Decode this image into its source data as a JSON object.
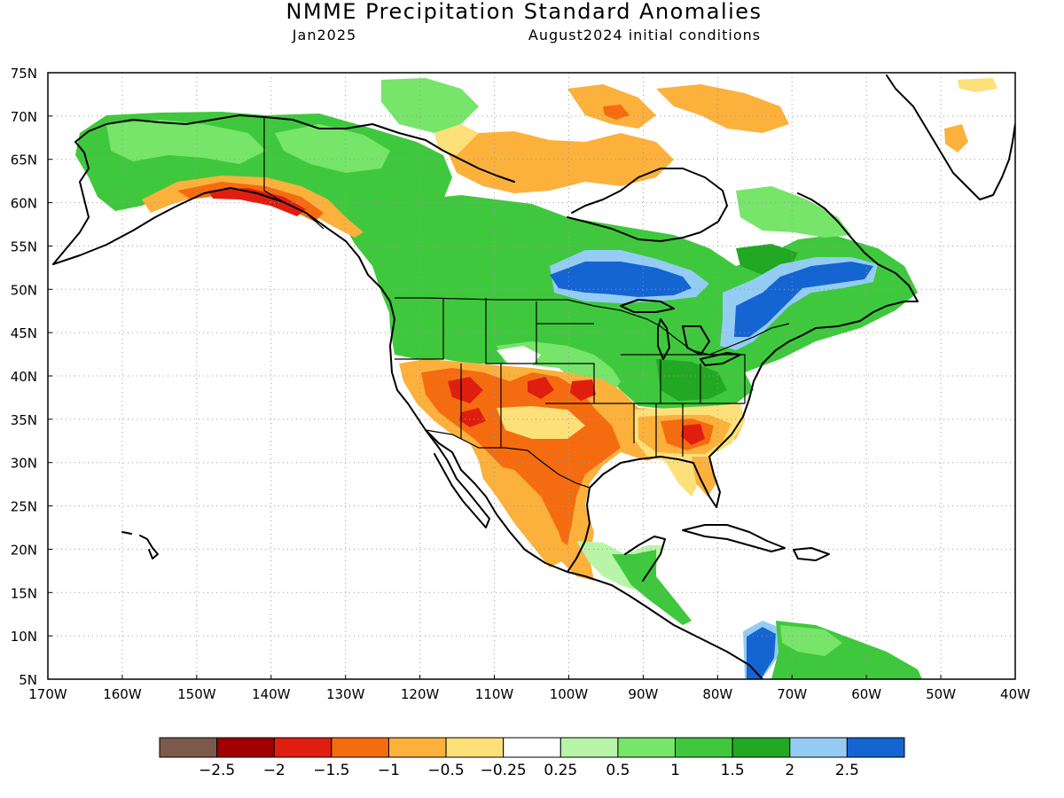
{
  "title": "NMME Precipitation Standard Anomalies",
  "subtitle_left": "Jan2025",
  "subtitle_right": "August2024 initial conditions",
  "map": {
    "lon_range": [
      -170,
      -40
    ],
    "lat_range": [
      5,
      75
    ],
    "lon_ticks": [
      -170,
      -160,
      -150,
      -140,
      -130,
      -120,
      -110,
      -100,
      -90,
      -80,
      -70,
      -60,
      -50,
      -40
    ],
    "lon_tick_labels": [
      "170W",
      "160W",
      "150W",
      "140W",
      "130W",
      "120W",
      "110W",
      "100W",
      "90W",
      "80W",
      "70W",
      "60W",
      "50W",
      "40W"
    ],
    "lat_ticks": [
      5,
      10,
      15,
      20,
      25,
      30,
      35,
      40,
      45,
      50,
      55,
      60,
      65,
      70,
      75
    ],
    "lat_tick_labels": [
      "5N",
      "10N",
      "15N",
      "20N",
      "25N",
      "30N",
      "35N",
      "40N",
      "45N",
      "50N",
      "55N",
      "60N",
      "65N",
      "70N",
      "75N"
    ],
    "grid": "dotted"
  },
  "legend": {
    "colors": [
      "#7b5a4c",
      "#a00000",
      "#e01e10",
      "#f56c10",
      "#fbb13c",
      "#fde07a",
      "#ffffff",
      "#b8f5a8",
      "#76e56a",
      "#3fc83d",
      "#22a822",
      "#94ccf4",
      "#1464d2"
    ],
    "labels": [
      "−2.5",
      "−2",
      "−1.5",
      "−1",
      "−0.5",
      "−0.25",
      "0.25",
      "0.5",
      "1",
      "1.5",
      "2",
      "2.5"
    ]
  }
}
